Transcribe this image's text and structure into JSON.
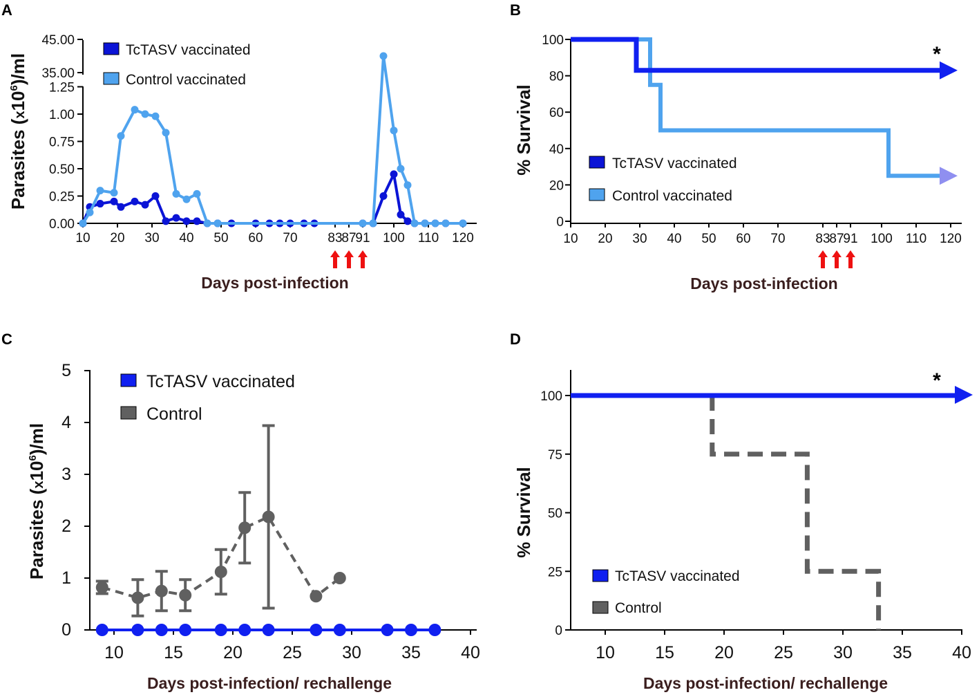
{
  "colors": {
    "dark_blue": "#0b14d6",
    "light_blue": "#4fa3ee",
    "bright_blue": "#1020f0",
    "gray": "#606060",
    "arrow_red": "#ee1111",
    "arrow_tip_light": "#8f8ff0"
  },
  "chart_data": [
    {
      "panel": "A",
      "type": "line",
      "xlabel": "Days post-infection",
      "ylabel_html": "Parasites (x10^6)/ml",
      "ylabel_parts": [
        "Parasites (",
        "x",
        "10",
        "6",
        ")/ml"
      ],
      "x_ticks": [
        "10",
        "20",
        "30",
        "40",
        "50",
        "60",
        "70",
        "83",
        "87",
        "91",
        "100",
        "110",
        "120"
      ],
      "y_ticks_lower": [
        "0.00",
        "0.25",
        "0.50",
        "0.75",
        "1.00",
        "1.25"
      ],
      "y_ticks_upper": [
        "35.00",
        "45.00"
      ],
      "arrows_at": [
        83,
        87,
        91
      ],
      "series": [
        {
          "name": "TcTASV vaccinated",
          "color": "dark_blue",
          "x": [
            10,
            12,
            15,
            19,
            21,
            25,
            28,
            31,
            34,
            37,
            40,
            43,
            46,
            49,
            53,
            60,
            64,
            67,
            70,
            74,
            77,
            91,
            94,
            97,
            100,
            102,
            104,
            106,
            109,
            112,
            115,
            120
          ],
          "y": [
            0,
            0.15,
            0.18,
            0.2,
            0.15,
            0.2,
            0.17,
            0.25,
            0.02,
            0.05,
            0.02,
            0.02,
            0,
            0,
            0,
            0,
            0,
            0,
            0,
            0,
            0,
            0,
            0,
            0.25,
            0.45,
            0.08,
            0.02,
            0,
            0,
            0,
            0,
            0
          ]
        },
        {
          "name": "Control vaccinated",
          "color": "light_blue",
          "x": [
            10,
            12,
            15,
            19,
            21,
            25,
            28,
            31,
            34,
            37,
            40,
            43,
            46,
            49,
            91,
            94,
            97,
            100,
            102,
            104,
            106,
            109,
            112,
            115,
            120
          ],
          "y": [
            0,
            0.1,
            0.3,
            0.28,
            0.8,
            1.04,
            1.0,
            0.98,
            0.83,
            0.27,
            0.22,
            0.27,
            0,
            0,
            0,
            0,
            40,
            0.85,
            0.5,
            0.35,
            0,
            0,
            0,
            0,
            0
          ]
        }
      ]
    },
    {
      "panel": "B",
      "type": "line",
      "xlabel": "Days post-infection",
      "ylabel": "% Survival",
      "x_ticks": [
        "10",
        "20",
        "30",
        "40",
        "50",
        "60",
        "70",
        "83",
        "87",
        "91",
        "100",
        "110",
        "120"
      ],
      "y_ticks": [
        "0",
        "20",
        "40",
        "60",
        "80",
        "100"
      ],
      "arrows_at": [
        83,
        87,
        91
      ],
      "annotation": "*",
      "series": [
        {
          "name": "TcTASV vaccinated",
          "color": "bright_blue",
          "steps": [
            [
              10,
              100
            ],
            [
              29,
              100
            ],
            [
              29,
              83
            ],
            [
              120,
              83
            ]
          ]
        },
        {
          "name": "Control vaccinated",
          "color": "light_blue",
          "steps": [
            [
              10,
              100
            ],
            [
              33,
              100
            ],
            [
              33,
              75
            ],
            [
              36,
              75
            ],
            [
              36,
              50
            ],
            [
              102,
              50
            ],
            [
              102,
              25
            ],
            [
              120,
              25
            ]
          ]
        }
      ]
    },
    {
      "panel": "C",
      "type": "line",
      "xlabel": "Days post-infection/ rechallenge",
      "ylabel_parts": [
        "Parasites (",
        "x",
        "10",
        "6",
        ")/ml"
      ],
      "x_ticks": [
        "10",
        "15",
        "20",
        "25",
        "30",
        "35",
        "40"
      ],
      "y_ticks": [
        "0",
        "1",
        "2",
        "3",
        "4",
        "5"
      ],
      "series": [
        {
          "name": "TcTASV vaccinated",
          "color": "bright_blue",
          "x": [
            9,
            12,
            14,
            16,
            19,
            21,
            23,
            27,
            29,
            33,
            35,
            37
          ],
          "y": [
            0,
            0,
            0,
            0,
            0,
            0,
            0,
            0,
            0,
            0,
            0,
            0
          ]
        },
        {
          "name": "Control",
          "color": "gray",
          "x": [
            9,
            12,
            14,
            16,
            19,
            21,
            23,
            27,
            29
          ],
          "y": [
            0.82,
            0.62,
            0.75,
            0.67,
            1.12,
            1.97,
            2.18,
            0.65,
            1.0
          ],
          "err": [
            0.12,
            0.35,
            0.38,
            0.3,
            0.43,
            0.68,
            1.76,
            0,
            0
          ]
        }
      ]
    },
    {
      "panel": "D",
      "type": "line",
      "xlabel": "Days post-infection/ rechallenge",
      "ylabel": "% Survival",
      "x_ticks": [
        "10",
        "15",
        "20",
        "25",
        "30",
        "35",
        "40"
      ],
      "y_ticks": [
        "0",
        "25",
        "50",
        "75",
        "100"
      ],
      "annotation": "*",
      "series": [
        {
          "name": "TcTASV vaccinated",
          "color": "bright_blue",
          "steps": [
            [
              7,
              100
            ],
            [
              40,
              100
            ]
          ]
        },
        {
          "name": "Control",
          "color": "gray",
          "steps": [
            [
              19,
              100
            ],
            [
              19,
              75
            ],
            [
              27,
              75
            ],
            [
              27,
              25
            ],
            [
              33,
              25
            ],
            [
              33,
              0
            ]
          ]
        }
      ]
    }
  ]
}
